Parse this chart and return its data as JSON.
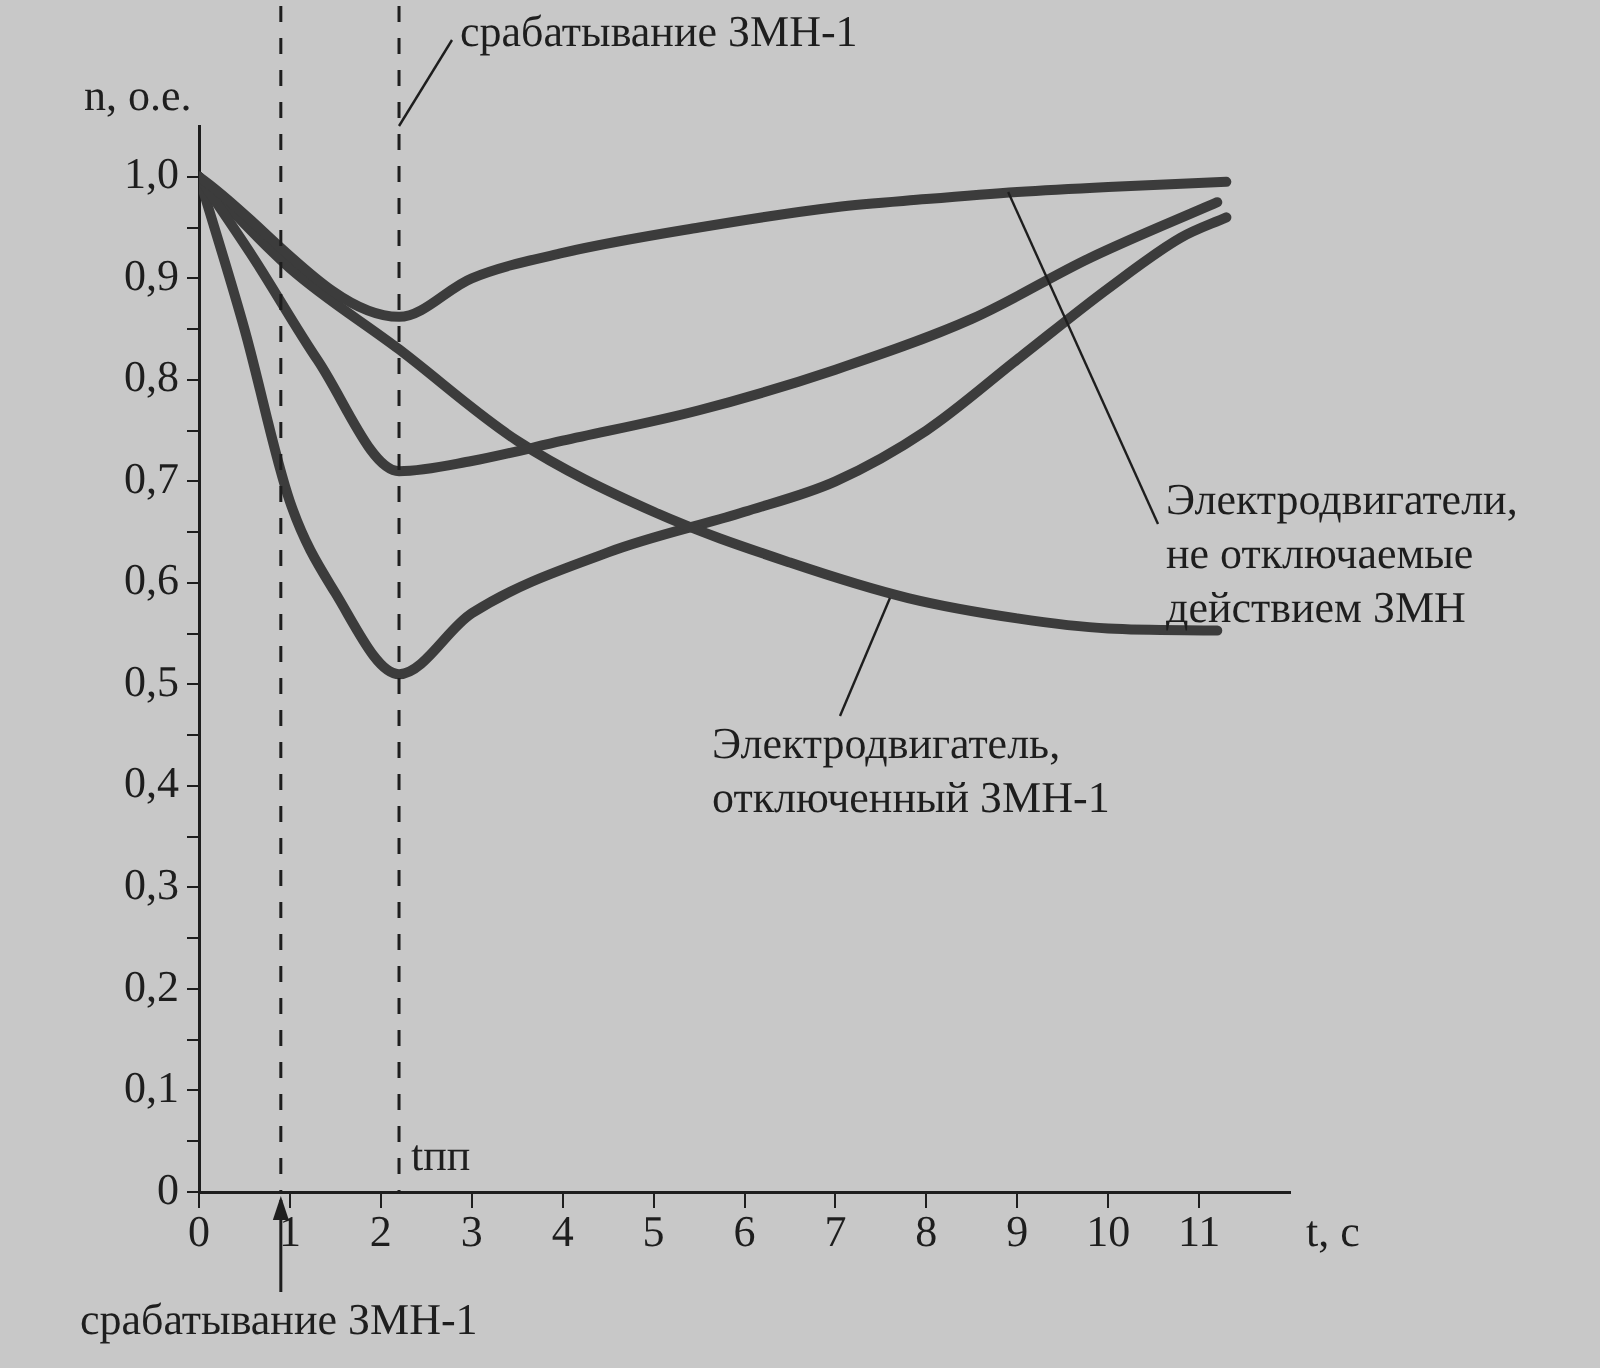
{
  "chart_data": {
    "type": "line",
    "xlabel": "t, c",
    "ylabel": "n, o.e.",
    "xlim": [
      0,
      12
    ],
    "xticks": [
      0,
      1,
      2,
      3,
      4,
      5,
      6,
      7,
      8,
      9,
      10,
      11
    ],
    "ylim": [
      0,
      1.05
    ],
    "yticks": [
      {
        "value": 0,
        "label": "0"
      },
      {
        "value": 0.05,
        "label": null
      },
      {
        "value": 0.1,
        "label": "0,1"
      },
      {
        "value": 0.15,
        "label": null
      },
      {
        "value": 0.2,
        "label": "0,2"
      },
      {
        "value": 0.25,
        "label": null
      },
      {
        "value": 0.3,
        "label": "0,3"
      },
      {
        "value": 0.35,
        "label": null
      },
      {
        "value": 0.4,
        "label": "0,4"
      },
      {
        "value": 0.45,
        "label": null
      },
      {
        "value": 0.5,
        "label": "0,5"
      },
      {
        "value": 0.55,
        "label": null
      },
      {
        "value": 0.6,
        "label": "0,6"
      },
      {
        "value": 0.65,
        "label": null
      },
      {
        "value": 0.7,
        "label": "0,7"
      },
      {
        "value": 0.75,
        "label": null
      },
      {
        "value": 0.8,
        "label": "0,8"
      },
      {
        "value": 0.85,
        "label": null
      },
      {
        "value": 0.9,
        "label": "0,9"
      },
      {
        "value": 0.95,
        "label": null
      },
      {
        "value": 1.0,
        "label": "1,0"
      }
    ],
    "grid": false,
    "legend": false,
    "marker": "none",
    "line_style": "solid",
    "series": [
      {
        "color": "#3c3c3c",
        "x": [
          0,
          2.2,
          3,
          4,
          5.5,
          7,
          8,
          9,
          10,
          11.3
        ],
        "values": [
          1.0,
          0.862,
          0.9,
          0.925,
          0.95,
          0.97,
          0.978,
          0.985,
          0.99,
          0.995
        ]
      },
      {
        "color": "#3c3c3c",
        "x": [
          0,
          0.6,
          1.3,
          2.2,
          3,
          4,
          5.5,
          7,
          8.5,
          9.8,
          11.2
        ],
        "values": [
          1.0,
          0.92,
          0.82,
          0.71,
          0.72,
          0.74,
          0.77,
          0.81,
          0.86,
          0.92,
          0.975
        ]
      },
      {
        "color": "#3c3c3c",
        "x": [
          0,
          1,
          2.2,
          3.5,
          5,
          6.5,
          7.8,
          9,
          10,
          11.2
        ],
        "values": [
          1.0,
          0.91,
          0.83,
          0.74,
          0.67,
          0.62,
          0.585,
          0.565,
          0.555,
          0.553
        ]
      },
      {
        "color": "#3c3c3c",
        "x": [
          0,
          0.5,
          1,
          1.5,
          2.2,
          3,
          4.5,
          6,
          7,
          8,
          9,
          10,
          10.8,
          11.3
        ],
        "values": [
          1.0,
          0.85,
          0.68,
          0.59,
          0.51,
          0.57,
          0.63,
          0.67,
          0.7,
          0.75,
          0.82,
          0.89,
          0.94,
          0.96
        ]
      }
    ],
    "ref_lines": [
      {
        "axis": "x",
        "value": 0.9,
        "label": "срабатывание ЗМН-1",
        "line_style": "dashed"
      },
      {
        "axis": "x",
        "value": 2.2,
        "label": "tпп",
        "line_style": "dashed"
      }
    ],
    "annotations": [
      {
        "text": "срабатывание ЗМН-1",
        "x": 2.2,
        "y": 1.05
      },
      {
        "text": "Электродвигатели,\nне отключаемые\nдействием ЗМН",
        "x": 8.9,
        "y": 0.985
      },
      {
        "text": "Электродвигатель,\nотключенный ЗМН-1",
        "x": 7.6,
        "y": 0.585
      }
    ]
  }
}
